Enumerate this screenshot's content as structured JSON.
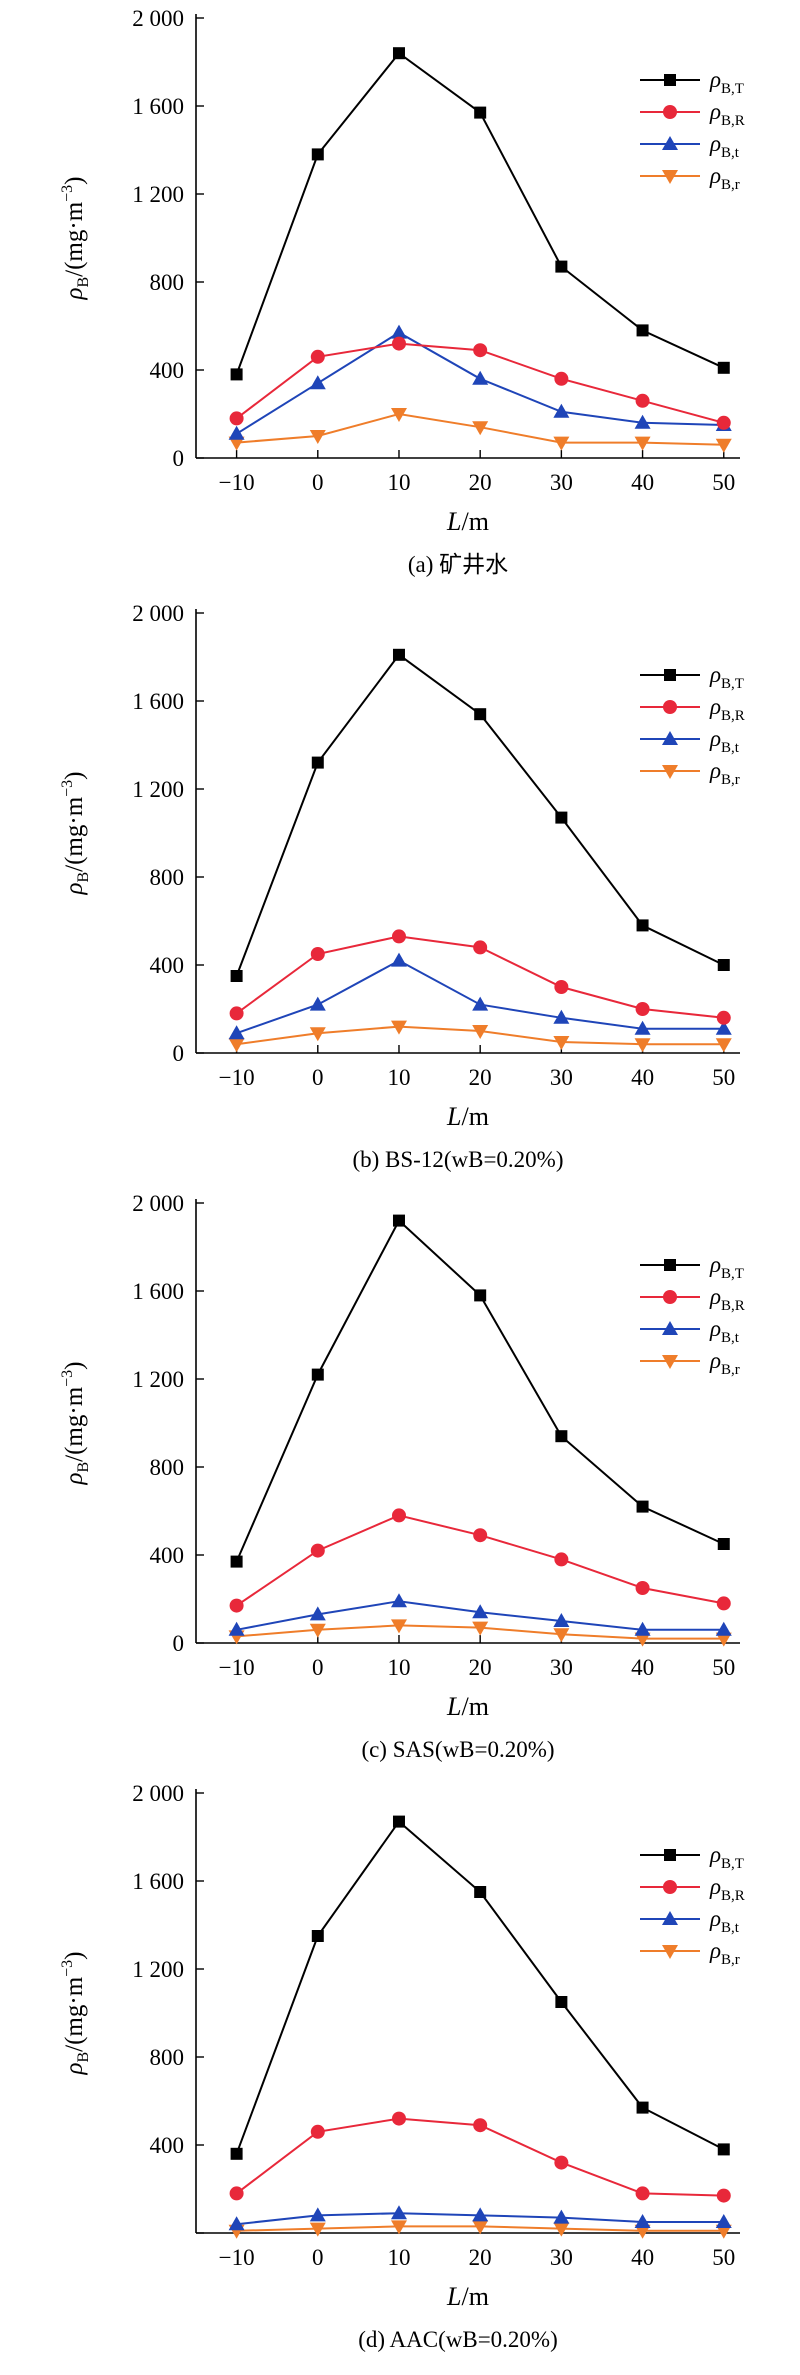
{
  "colors": {
    "T": "#000000",
    "R": "#e8283a",
    "t": "#1f45b8",
    "r": "#ef7d2a",
    "axis": "#000000"
  },
  "legend_labels": {
    "T": {
      "main": "ρ",
      "sub": "B,T"
    },
    "R": {
      "main": "ρ",
      "sub": "B,R"
    },
    "t": {
      "main": "ρ",
      "sub": "B,t"
    },
    "r": {
      "main": "ρ",
      "sub": "B,r"
    }
  },
  "axis_labels": {
    "y": {
      "main": "ρ",
      "sub": "B",
      "rest": "/(mg·m",
      "sup": "−3",
      "close": ")"
    },
    "x": {
      "main": "L",
      "rest": "/m"
    }
  },
  "chart_data": [
    {
      "type": "line",
      "title": "(a) 矿井水",
      "x": [
        -10,
        0,
        10,
        20,
        30,
        40,
        50
      ],
      "xlim": [
        -15,
        52
      ],
      "ylim": [
        0,
        2000
      ],
      "yticks": [
        "0",
        "400",
        "800",
        "1 200",
        "1 600",
        "2 000"
      ],
      "xticks": [
        "−10",
        "0",
        "10",
        "20",
        "30",
        "40",
        "50"
      ],
      "legend_position": "top-right",
      "series": [
        {
          "key": "T",
          "marker": "square",
          "values": [
            380,
            1380,
            1840,
            1570,
            870,
            580,
            410
          ]
        },
        {
          "key": "R",
          "marker": "circle",
          "values": [
            180,
            460,
            520,
            490,
            360,
            260,
            160
          ]
        },
        {
          "key": "t",
          "marker": "triangle-up",
          "values": [
            110,
            340,
            570,
            360,
            210,
            160,
            150
          ]
        },
        {
          "key": "r",
          "marker": "triangle-down",
          "values": [
            70,
            100,
            200,
            140,
            70,
            70,
            60
          ]
        }
      ]
    },
    {
      "type": "line",
      "title": "(b) BS-12(wB=0.20%)",
      "x": [
        -10,
        0,
        10,
        20,
        30,
        40,
        50
      ],
      "xlim": [
        -15,
        52
      ],
      "ylim": [
        0,
        2000
      ],
      "yticks": [
        "0",
        "400",
        "800",
        "1 200",
        "1 600",
        "2 000"
      ],
      "xticks": [
        "−10",
        "0",
        "10",
        "20",
        "30",
        "40",
        "50"
      ],
      "legend_position": "top-right",
      "series": [
        {
          "key": "T",
          "marker": "square",
          "values": [
            350,
            1320,
            1810,
            1540,
            1070,
            580,
            400
          ]
        },
        {
          "key": "R",
          "marker": "circle",
          "values": [
            180,
            450,
            530,
            480,
            300,
            200,
            160
          ]
        },
        {
          "key": "t",
          "marker": "triangle-up",
          "values": [
            90,
            220,
            420,
            220,
            160,
            110,
            110
          ]
        },
        {
          "key": "r",
          "marker": "triangle-down",
          "values": [
            40,
            90,
            120,
            100,
            50,
            40,
            40
          ]
        }
      ]
    },
    {
      "type": "line",
      "title": "(c) SAS(wB=0.20%)",
      "x": [
        -10,
        0,
        10,
        20,
        30,
        40,
        50
      ],
      "xlim": [
        -15,
        52
      ],
      "ylim": [
        0,
        2000
      ],
      "yticks": [
        "0",
        "400",
        "800",
        "1 200",
        "1 600",
        "2 000"
      ],
      "xticks": [
        "−10",
        "0",
        "10",
        "20",
        "30",
        "40",
        "50"
      ],
      "legend_position": "top-right",
      "series": [
        {
          "key": "T",
          "marker": "square",
          "values": [
            370,
            1220,
            1920,
            1580,
            940,
            620,
            450
          ]
        },
        {
          "key": "R",
          "marker": "circle",
          "values": [
            170,
            420,
            580,
            490,
            380,
            250,
            180
          ]
        },
        {
          "key": "t",
          "marker": "triangle-up",
          "values": [
            60,
            130,
            190,
            140,
            100,
            60,
            60
          ]
        },
        {
          "key": "r",
          "marker": "triangle-down",
          "values": [
            30,
            60,
            80,
            70,
            40,
            20,
            20
          ]
        }
      ]
    },
    {
      "type": "line",
      "title": "(d) AAC(wB=0.20%)",
      "x": [
        -10,
        0,
        10,
        20,
        30,
        40,
        50
      ],
      "xlim": [
        -15,
        52
      ],
      "ylim": [
        0,
        2000
      ],
      "yticks": [
        "400",
        "800",
        "1 200",
        "1 600",
        "2 000"
      ],
      "xticks": [
        "−10",
        "0",
        "10",
        "20",
        "30",
        "40",
        "50"
      ],
      "legend_position": "top-right",
      "series": [
        {
          "key": "T",
          "marker": "square",
          "values": [
            360,
            1350,
            1870,
            1550,
            1050,
            570,
            380
          ]
        },
        {
          "key": "R",
          "marker": "circle",
          "values": [
            180,
            460,
            520,
            490,
            320,
            180,
            170
          ]
        },
        {
          "key": "t",
          "marker": "triangle-up",
          "values": [
            40,
            80,
            90,
            80,
            70,
            50,
            50
          ]
        },
        {
          "key": "r",
          "marker": "triangle-down",
          "values": [
            10,
            20,
            30,
            30,
            20,
            10,
            10
          ]
        }
      ]
    }
  ]
}
